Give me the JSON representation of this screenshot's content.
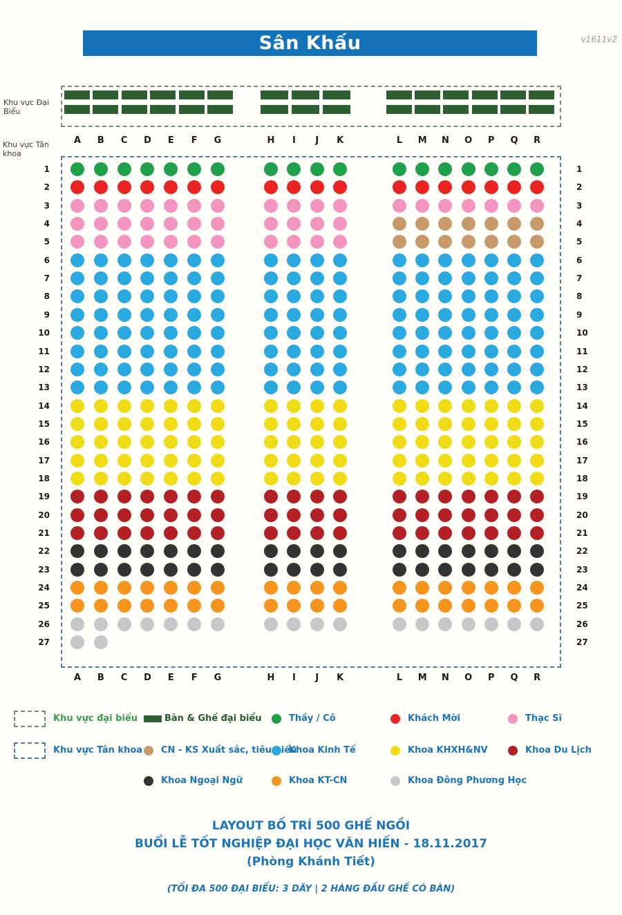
{
  "meta": {
    "version_label": "v1611v2"
  },
  "stage": {
    "title": "Sân Khấu"
  },
  "area_labels": {
    "vip": "Khu vực Đại Biểu",
    "grad": "Khu vực Tân khoa"
  },
  "palette": {
    "thay-co": "#1fa14b",
    "khach-moi": "#ea2420",
    "thac-si": "#f494c1",
    "cn-ks": "#c89a6b",
    "kinh-te": "#29a9df",
    "khxh-nv": "#f0dc16",
    "du-lich": "#b32025",
    "ngoai-ngu": "#333333",
    "kt-cn": "#f7941e",
    "dong-phuong": "#c6c7c9",
    "table": "#2d5f33",
    "vip_border": "#6f8f72",
    "grad_border": "#4e7e9f",
    "stage_bg": "#1473b8",
    "text_blue": "#1b75bb",
    "text_green": "#3d9b4f",
    "text_darkgreen": "#265c2e"
  },
  "vip_tables": {
    "rows": 2,
    "groups": [
      {
        "count": 6
      },
      {
        "count": 3
      },
      {
        "count": 6
      }
    ]
  },
  "blocks": [
    {
      "columns": [
        "A",
        "B",
        "C",
        "D",
        "E",
        "F",
        "G"
      ]
    },
    {
      "columns": [
        "H",
        "I",
        "J",
        "K"
      ]
    },
    {
      "columns": [
        "L",
        "M",
        "N",
        "O",
        "P",
        "Q",
        "R"
      ]
    }
  ],
  "seat_plan": [
    {
      "row": 1,
      "blocks": [
        "thay-co",
        "thay-co",
        "thay-co"
      ]
    },
    {
      "row": 2,
      "blocks": [
        "khach-moi",
        "khach-moi",
        "khach-moi"
      ]
    },
    {
      "row": 3,
      "blocks": [
        "thac-si",
        "thac-si",
        "thac-si"
      ]
    },
    {
      "row": 4,
      "blocks": [
        "thac-si",
        "thac-si",
        "cn-ks"
      ]
    },
    {
      "row": 5,
      "blocks": [
        "thac-si",
        "thac-si",
        "cn-ks"
      ]
    },
    {
      "row": 6,
      "blocks": [
        "kinh-te",
        "kinh-te",
        "kinh-te"
      ]
    },
    {
      "row": 7,
      "blocks": [
        "kinh-te",
        "kinh-te",
        "kinh-te"
      ]
    },
    {
      "row": 8,
      "blocks": [
        "kinh-te",
        "kinh-te",
        "kinh-te"
      ]
    },
    {
      "row": 9,
      "blocks": [
        "kinh-te",
        "kinh-te",
        "kinh-te"
      ]
    },
    {
      "row": 10,
      "blocks": [
        "kinh-te",
        "kinh-te",
        "kinh-te"
      ]
    },
    {
      "row": 11,
      "blocks": [
        "kinh-te",
        "kinh-te",
        "kinh-te"
      ]
    },
    {
      "row": 12,
      "blocks": [
        "kinh-te",
        "kinh-te",
        "kinh-te"
      ]
    },
    {
      "row": 13,
      "blocks": [
        "kinh-te",
        "kinh-te",
        "kinh-te"
      ]
    },
    {
      "row": 14,
      "blocks": [
        "khxh-nv",
        "khxh-nv",
        "khxh-nv"
      ]
    },
    {
      "row": 15,
      "blocks": [
        "khxh-nv",
        "khxh-nv",
        "khxh-nv"
      ]
    },
    {
      "row": 16,
      "blocks": [
        "khxh-nv",
        "khxh-nv",
        "khxh-nv"
      ]
    },
    {
      "row": 17,
      "blocks": [
        "khxh-nv",
        "khxh-nv",
        "khxh-nv"
      ]
    },
    {
      "row": 18,
      "blocks": [
        "khxh-nv",
        "khxh-nv",
        "khxh-nv"
      ]
    },
    {
      "row": 19,
      "blocks": [
        "du-lich",
        "du-lich",
        "du-lich"
      ]
    },
    {
      "row": 20,
      "blocks": [
        "du-lich",
        "du-lich",
        "du-lich"
      ]
    },
    {
      "row": 21,
      "blocks": [
        "du-lich",
        "du-lich",
        "du-lich"
      ]
    },
    {
      "row": 22,
      "blocks": [
        "ngoai-ngu",
        "ngoai-ngu",
        "ngoai-ngu"
      ]
    },
    {
      "row": 23,
      "blocks": [
        "ngoai-ngu",
        "ngoai-ngu",
        "ngoai-ngu"
      ]
    },
    {
      "row": 24,
      "blocks": [
        "kt-cn",
        "kt-cn",
        "kt-cn"
      ]
    },
    {
      "row": 25,
      "blocks": [
        "kt-cn",
        "kt-cn",
        "kt-cn"
      ]
    },
    {
      "row": 26,
      "blocks": [
        "dong-phuong",
        "dong-phuong",
        "dong-phuong"
      ]
    },
    {
      "row": 27,
      "blocks": [
        "dong-phuong",
        null,
        null
      ],
      "counts": [
        2,
        0,
        0
      ]
    }
  ],
  "legend": {
    "items": [
      {
        "row": 0,
        "col": 0,
        "swatch": "dashed-box",
        "box_color_key": "vip_border",
        "label": "Khu vực đại biểu",
        "label_color": "text_green",
        "name": "legend-vip-area"
      },
      {
        "row": 0,
        "col": 1,
        "swatch": "rect",
        "color_key": "table",
        "label": "Bàn & Ghế đại biểu",
        "label_color": "text_darkgreen",
        "name": "legend-table"
      },
      {
        "row": 0,
        "col": 2,
        "swatch": "dot",
        "color_key": "thay-co",
        "label": "Thầy / Cô",
        "label_color": "text_blue",
        "name": "legend-thay-co"
      },
      {
        "row": 0,
        "col": 3,
        "swatch": "dot",
        "color_key": "khach-moi",
        "label": "Khách Mời",
        "label_color": "text_blue",
        "name": "legend-khach-moi"
      },
      {
        "row": 0,
        "col": 4,
        "swatch": "dot",
        "color_key": "thac-si",
        "label": "Thạc Sĩ",
        "label_color": "text_blue",
        "name": "legend-thac-si"
      },
      {
        "row": 1,
        "col": 0,
        "swatch": "dashed-box",
        "box_color_key": "grad_border",
        "label": "Khu vực Tân khoa",
        "label_color": "text_blue",
        "name": "legend-grad-area"
      },
      {
        "row": 1,
        "col": 1,
        "swatch": "dot",
        "color_key": "cn-ks",
        "label": "CN - KS Xuất sắc, tiêu biểu",
        "label_color": "text_blue",
        "name": "legend-cn-ks"
      },
      {
        "row": 1,
        "col": 2,
        "swatch": "dot",
        "color_key": "kinh-te",
        "label": "Khoa Kinh Tế",
        "label_color": "text_blue",
        "name": "legend-kinh-te"
      },
      {
        "row": 1,
        "col": 3,
        "swatch": "dot",
        "color_key": "khxh-nv",
        "label": "Khoa KHXH&NV",
        "label_color": "text_blue",
        "name": "legend-khxh-nv"
      },
      {
        "row": 1,
        "col": 4,
        "swatch": "dot",
        "color_key": "du-lich",
        "label": "Khoa Du Lịch",
        "label_color": "text_blue",
        "name": "legend-du-lich"
      },
      {
        "row": 2,
        "col": 1,
        "swatch": "dot",
        "color_key": "ngoai-ngu",
        "label": "Khoa Ngoại Ngữ",
        "label_color": "text_blue",
        "name": "legend-ngoai-ngu"
      },
      {
        "row": 2,
        "col": 2,
        "swatch": "dot",
        "color_key": "kt-cn",
        "label": "Khoa KT-CN",
        "label_color": "text_blue",
        "name": "legend-kt-cn"
      },
      {
        "row": 2,
        "col": 3,
        "swatch": "dot",
        "color_key": "dong-phuong",
        "label": "Khoa Đông Phương Học",
        "label_color": "text_blue",
        "name": "legend-dong-phuong"
      }
    ]
  },
  "footer": {
    "line1": "LAYOUT BỐ TRÍ 500 GHẾ NGỒI",
    "line2": "BUỔI LỄ TỐT NGHIỆP ĐẠI HỌC VĂN HIẾN - 18.11.2017",
    "line3": "(Phòng Khánh Tiết)",
    "note": "(TỐI ĐA 500 ĐẠI BIỂU: 3 DÃY | 2 HÀNG ĐẦU GHẾ CÓ BÀN)"
  }
}
